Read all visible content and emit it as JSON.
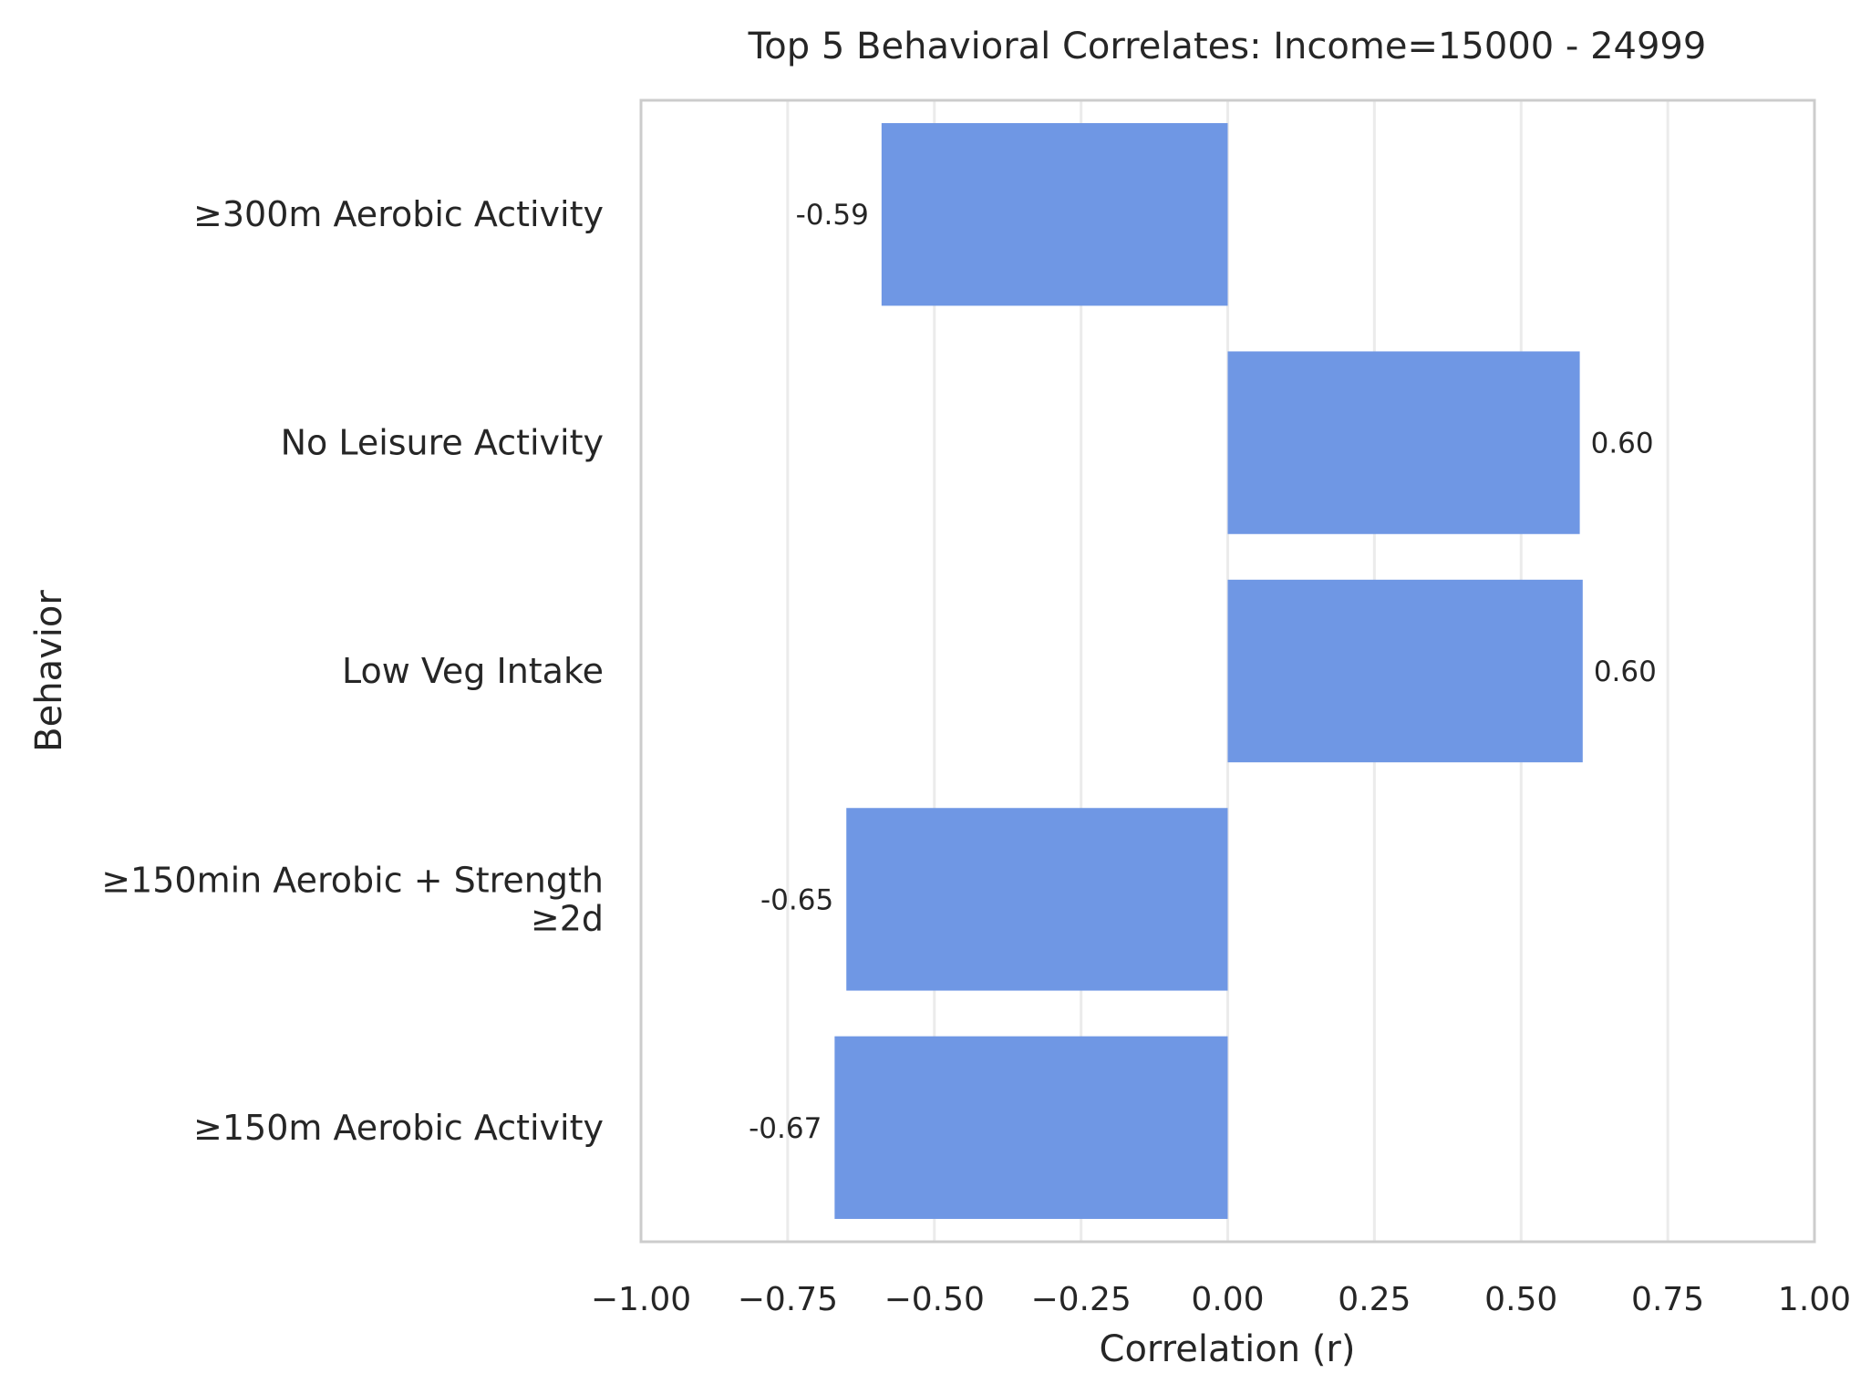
{
  "chart_data": {
    "type": "bar",
    "orientation": "horizontal",
    "title": "Top 5 Behavioral Correlates: Income=15000 - 24999",
    "xlabel": "Correlation (r)",
    "ylabel": "Behavior",
    "xlim": [
      -1.0,
      1.0
    ],
    "xticks": [
      "−1.00",
      "−0.75",
      "−0.50",
      "−0.25",
      "0.00",
      "0.25",
      "0.50",
      "0.75",
      "1.00"
    ],
    "xtick_values": [
      -1.0,
      -0.75,
      -0.5,
      -0.25,
      0.0,
      0.25,
      0.5,
      0.75,
      1.0
    ],
    "categories": [
      [
        "≥300m Aerobic Activity"
      ],
      [
        "No Leisure Activity"
      ],
      [
        "Low Veg Intake"
      ],
      [
        "≥150min Aerobic + Strength",
        "≥2d"
      ],
      [
        "≥150m Aerobic Activity"
      ]
    ],
    "values": [
      -0.59,
      0.6,
      0.605,
      -0.65,
      -0.67
    ],
    "data_labels": [
      "-0.59",
      "0.60",
      "0.60",
      "-0.65",
      "-0.67"
    ],
    "bar_color": "#6f97e4",
    "grid": "vertical",
    "legend": "none"
  }
}
